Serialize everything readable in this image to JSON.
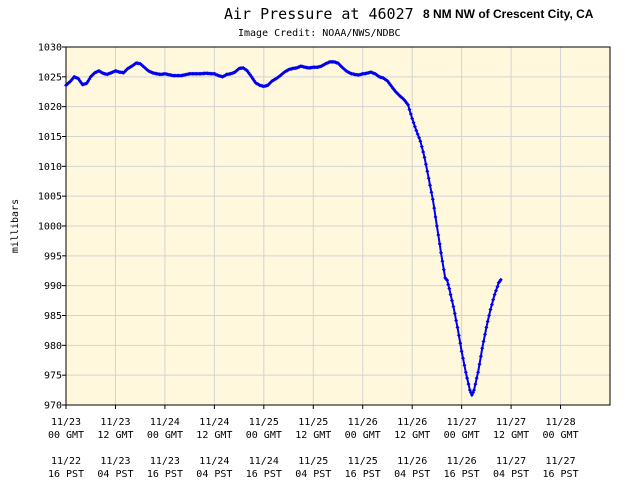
{
  "title": "Air Pressure at 46027",
  "station": "8 NM NW of Crescent City, CA",
  "credit": "Image Credit: NOAA/NWS/NDBC",
  "chart_data": {
    "type": "line",
    "title": "Air Pressure at 46027",
    "ylabel": "millibars",
    "xlabel": "",
    "ylim": [
      970,
      1030
    ],
    "yticks": [
      970,
      975,
      980,
      985,
      990,
      995,
      1000,
      1005,
      1010,
      1015,
      1020,
      1025,
      1030
    ],
    "xlim_hours": [
      0,
      132
    ],
    "x_unit": "hours after 11/23 00 GMT",
    "grid": true,
    "xticks": [
      {
        "h": 0,
        "gmt_date": "11/23",
        "gmt_time": "00 GMT",
        "pst_date": "11/22",
        "pst_time": "16 PST"
      },
      {
        "h": 12,
        "gmt_date": "11/23",
        "gmt_time": "12 GMT",
        "pst_date": "11/23",
        "pst_time": "04 PST"
      },
      {
        "h": 24,
        "gmt_date": "11/24",
        "gmt_time": "00 GMT",
        "pst_date": "11/23",
        "pst_time": "16 PST"
      },
      {
        "h": 36,
        "gmt_date": "11/24",
        "gmt_time": "12 GMT",
        "pst_date": "11/24",
        "pst_time": "04 PST"
      },
      {
        "h": 48,
        "gmt_date": "11/25",
        "gmt_time": "00 GMT",
        "pst_date": "11/24",
        "pst_time": "16 PST"
      },
      {
        "h": 60,
        "gmt_date": "11/25",
        "gmt_time": "12 GMT",
        "pst_date": "11/25",
        "pst_time": "04 PST"
      },
      {
        "h": 72,
        "gmt_date": "11/26",
        "gmt_time": "00 GMT",
        "pst_date": "11/25",
        "pst_time": "16 PST"
      },
      {
        "h": 84,
        "gmt_date": "11/26",
        "gmt_time": "12 GMT",
        "pst_date": "11/26",
        "pst_time": "04 PST"
      },
      {
        "h": 96,
        "gmt_date": "11/27",
        "gmt_time": "00 GMT",
        "pst_date": "11/26",
        "pst_time": "16 PST"
      },
      {
        "h": 108,
        "gmt_date": "11/27",
        "gmt_time": "12 GMT",
        "pst_date": "11/27",
        "pst_time": "04 PST"
      },
      {
        "h": 120,
        "gmt_date": "11/28",
        "gmt_time": "00 GMT",
        "pst_date": "11/27",
        "pst_time": "16 PST"
      }
    ],
    "series": [
      {
        "color": "#0000ee",
        "points": [
          [
            0,
            1023.6
          ],
          [
            1,
            1024.2
          ],
          [
            2,
            1025.0
          ],
          [
            3,
            1024.7
          ],
          [
            4,
            1023.7
          ],
          [
            5,
            1023.9
          ],
          [
            6,
            1025.0
          ],
          [
            7,
            1025.7
          ],
          [
            8,
            1026.0
          ],
          [
            9,
            1025.6
          ],
          [
            10,
            1025.4
          ],
          [
            11,
            1025.7
          ],
          [
            12,
            1026.0
          ],
          [
            13,
            1025.8
          ],
          [
            14,
            1025.7
          ],
          [
            15,
            1026.4
          ],
          [
            16,
            1026.8
          ],
          [
            17,
            1027.3
          ],
          [
            18,
            1027.2
          ],
          [
            19,
            1026.6
          ],
          [
            20,
            1026.0
          ],
          [
            21,
            1025.7
          ],
          [
            22,
            1025.5
          ],
          [
            23,
            1025.4
          ],
          [
            24,
            1025.5
          ],
          [
            26,
            1025.2
          ],
          [
            28,
            1025.2
          ],
          [
            30,
            1025.5
          ],
          [
            32,
            1025.5
          ],
          [
            34,
            1025.6
          ],
          [
            36,
            1025.5
          ],
          [
            37,
            1025.2
          ],
          [
            38,
            1025.0
          ],
          [
            39,
            1025.4
          ],
          [
            40,
            1025.5
          ],
          [
            41,
            1025.8
          ],
          [
            42,
            1026.4
          ],
          [
            43,
            1026.5
          ],
          [
            44,
            1026.0
          ],
          [
            45,
            1025.0
          ],
          [
            46,
            1024.0
          ],
          [
            47,
            1023.6
          ],
          [
            48,
            1023.4
          ],
          [
            49,
            1023.6
          ],
          [
            50,
            1024.3
          ],
          [
            51,
            1024.7
          ],
          [
            52,
            1025.2
          ],
          [
            53,
            1025.8
          ],
          [
            54,
            1026.2
          ],
          [
            55,
            1026.4
          ],
          [
            56,
            1026.5
          ],
          [
            57,
            1026.8
          ],
          [
            58,
            1026.6
          ],
          [
            59,
            1026.5
          ],
          [
            60,
            1026.6
          ],
          [
            61,
            1026.6
          ],
          [
            62,
            1026.8
          ],
          [
            63,
            1027.2
          ],
          [
            64,
            1027.5
          ],
          [
            65,
            1027.5
          ],
          [
            66,
            1027.3
          ],
          [
            67,
            1026.6
          ],
          [
            68,
            1026.0
          ],
          [
            69,
            1025.6
          ],
          [
            70,
            1025.4
          ],
          [
            71,
            1025.3
          ],
          [
            72,
            1025.5
          ],
          [
            73,
            1025.6
          ],
          [
            74,
            1025.8
          ],
          [
            75,
            1025.5
          ],
          [
            76,
            1025.0
          ],
          [
            77,
            1024.8
          ],
          [
            78,
            1024.3
          ],
          [
            79,
            1023.4
          ],
          [
            80,
            1022.5
          ],
          [
            81,
            1021.8
          ],
          [
            82,
            1021.2
          ],
          [
            83,
            1020.3
          ],
          [
            84,
            1018.0
          ],
          [
            85,
            1016.0
          ],
          [
            86,
            1014.2
          ],
          [
            87,
            1011.5
          ],
          [
            88,
            1008.0
          ],
          [
            89,
            1004.5
          ],
          [
            90,
            1000.0
          ],
          [
            91,
            995.5
          ],
          [
            92,
            991.3
          ],
          [
            92.5,
            990.9
          ],
          [
            93,
            989.5
          ],
          [
            94,
            986.5
          ],
          [
            95,
            983.0
          ],
          [
            96,
            979.0
          ],
          [
            97,
            975.5
          ],
          [
            98,
            972.5
          ],
          [
            98.5,
            971.7
          ],
          [
            99,
            972.5
          ],
          [
            100,
            975.5
          ],
          [
            101,
            979.5
          ],
          [
            102,
            983.0
          ],
          [
            103,
            986.0
          ],
          [
            104,
            988.5
          ],
          [
            105,
            990.5
          ],
          [
            105.5,
            991.0
          ]
        ]
      }
    ]
  }
}
